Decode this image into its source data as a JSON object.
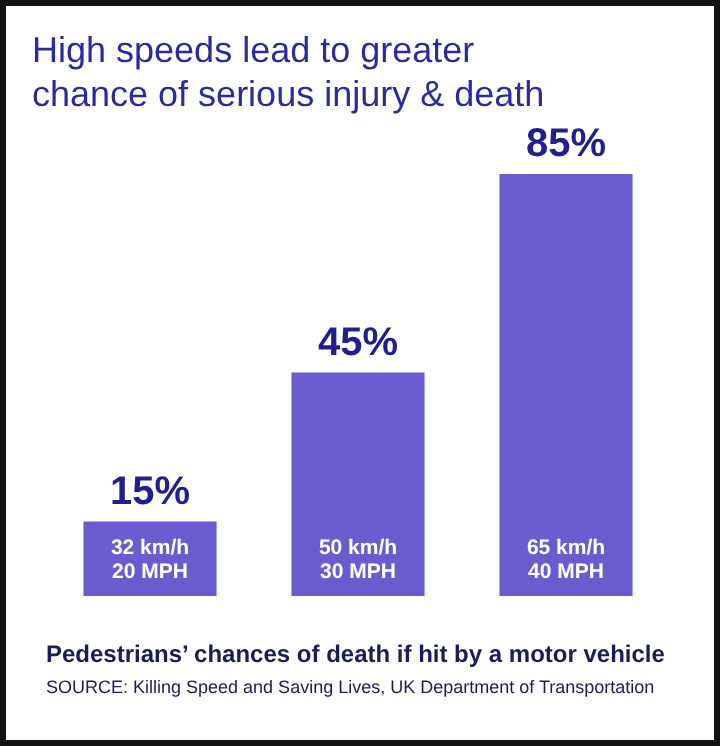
{
  "chart_data": {
    "type": "bar",
    "title": "High speeds lead to greater chance of serious injury & death",
    "categories": [
      "32 km/h\n20 MPH",
      "50 km/h\n30 MPH",
      "65 km/h\n40 MPH"
    ],
    "values": [
      15,
      45,
      85
    ],
    "color": "#6a5ccf",
    "value_labels": [
      "15%",
      "45%",
      "85%"
    ],
    "annotations": [
      "Pedestrians’ chances of death if hit by a motor vehicle",
      "SOURCE: Killing Speed and Saving Lives, UK Department of Transportation"
    ]
  }
}
